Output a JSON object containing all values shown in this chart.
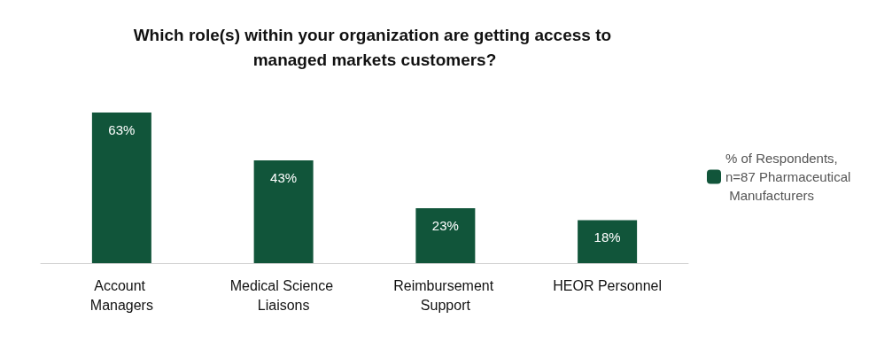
{
  "chart_data": {
    "type": "bar",
    "title": "Which role(s) within your organization are getting access to managed markets customers?",
    "categories": [
      "Account Managers",
      "Medical Science Liaisons",
      "Reimbursement Support",
      "HEOR Personnel"
    ],
    "series": [
      {
        "name": "% of Respondents, n=87 Pharmaceutical Manufacturers",
        "color": "#11553a",
        "values": [
          63,
          43,
          23,
          18
        ],
        "value_labels": [
          "63%",
          "43%",
          "23%",
          "18%"
        ]
      }
    ],
    "legend": "right",
    "grid": false
  }
}
